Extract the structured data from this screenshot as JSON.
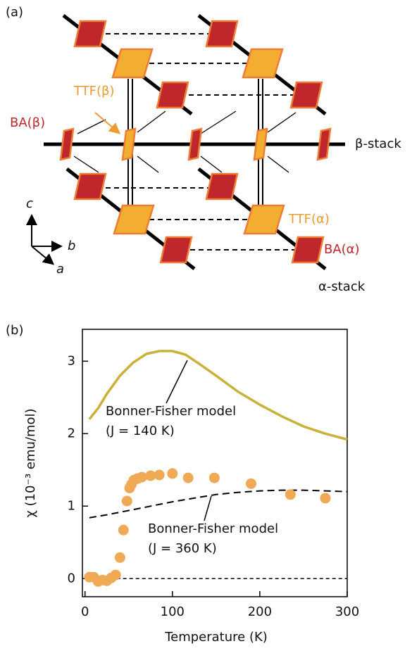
{
  "panel_a": {
    "label": "(a)",
    "ttf_beta": "TTF(β)",
    "ba_beta": "BA(β)",
    "beta_stack": "β-stack",
    "axis_c": "c",
    "axis_b": "b",
    "axis_a": "a",
    "ttf_alpha": "TTF(α)",
    "ba_alpha": "BA(α)",
    "alpha_stack": "α-stack"
  },
  "chart_data": {
    "type": "line",
    "panel_label": "(b)",
    "x_label": "Temperature (K)",
    "y_label": "χ (10⁻³ emu/mol)",
    "xlim": [
      -3,
      300
    ],
    "xticks": [
      0,
      100,
      200,
      300
    ],
    "ylim": [
      -0.25,
      3.44
    ],
    "yticks": [
      0,
      1,
      2,
      3
    ],
    "hline": 0,
    "series": [
      {
        "color": "#c8b23c",
        "style": "solid",
        "x": [
          5,
          15,
          25,
          40,
          55,
          70,
          85,
          100,
          115,
          130,
          150,
          175,
          200,
          225,
          250,
          275,
          300
        ],
        "values": [
          2.2,
          2.35,
          2.55,
          2.8,
          2.98,
          3.1,
          3.14,
          3.14,
          3.09,
          2.97,
          2.8,
          2.58,
          2.4,
          2.24,
          2.1,
          2.0,
          1.92
        ]
      },
      {
        "color": "#000000",
        "style": "dashed",
        "x": [
          5,
          25,
          50,
          75,
          100,
          125,
          150,
          175,
          200,
          225,
          250,
          275,
          300
        ],
        "values": [
          0.84,
          0.88,
          0.94,
          1.0,
          1.06,
          1.11,
          1.16,
          1.19,
          1.21,
          1.22,
          1.22,
          1.21,
          1.2
        ]
      },
      {
        "color": "#f0a955",
        "style": "marker",
        "x": [
          5,
          10,
          15,
          20,
          25,
          30,
          35,
          40,
          44,
          48,
          51,
          53,
          56,
          60,
          65,
          75,
          85,
          100,
          118,
          148,
          190,
          235,
          275
        ],
        "values": [
          0.02,
          0.02,
          -0.04,
          -0.02,
          -0.03,
          0.01,
          0.05,
          0.29,
          0.67,
          1.07,
          1.25,
          1.3,
          1.36,
          1.38,
          1.4,
          1.42,
          1.43,
          1.45,
          1.39,
          1.39,
          1.31,
          1.16,
          1.11
        ]
      }
    ],
    "annotations": [
      {
        "lines": [
          "Bonner-Fisher model",
          "(J = 140 K)"
        ]
      },
      {
        "lines": [
          "Bonner-Fisher model",
          "(J = 360 K)"
        ]
      }
    ]
  }
}
